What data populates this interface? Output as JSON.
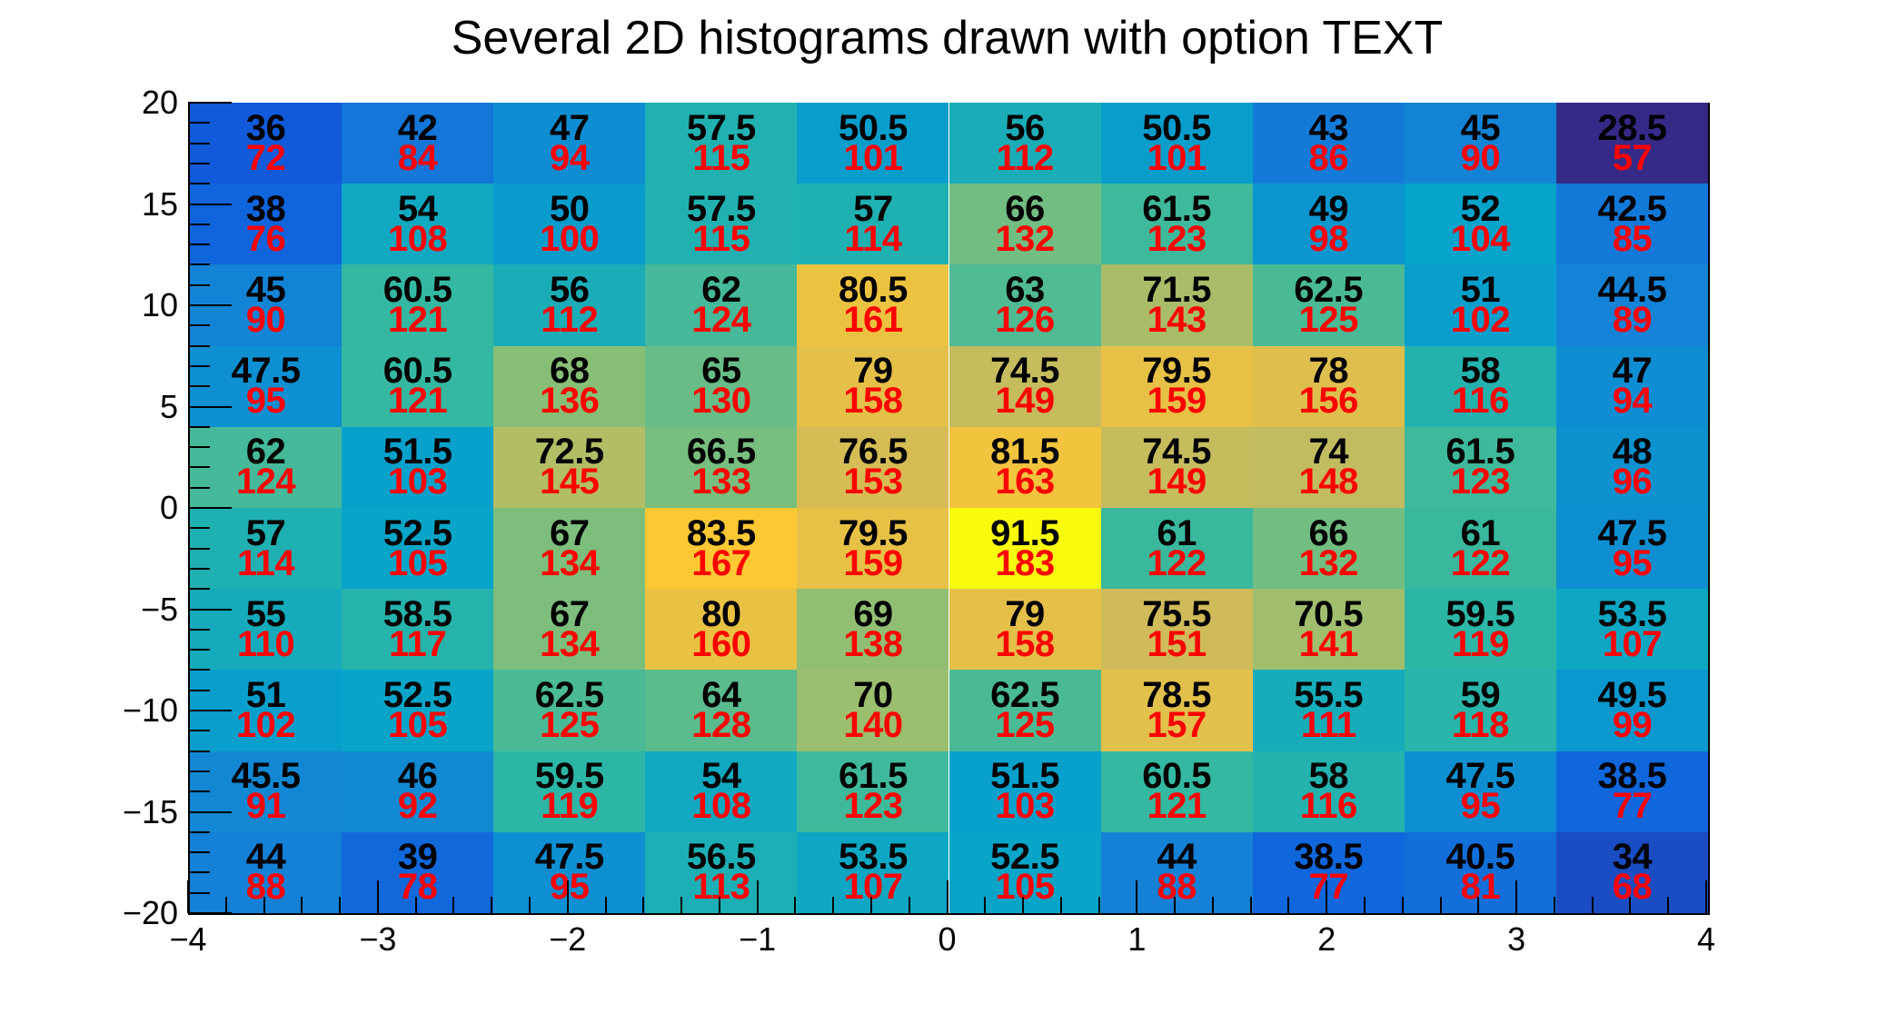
{
  "title": "Several 2D histograms drawn with option TEXT",
  "colors": {
    "background": "#ffffff",
    "axis": "#000000",
    "text_black_series": "#000000",
    "text_red_series": "#ff0000"
  },
  "palette": {
    "name": "root-kBird",
    "positions": [
      0,
      0.125,
      0.25,
      0.375,
      0.5,
      0.625,
      0.75,
      0.875,
      1.0
    ],
    "rgb": [
      [
        53,
        42,
        135
      ],
      [
        15,
        92,
        221
      ],
      [
        20,
        129,
        214
      ],
      [
        6,
        164,
        202
      ],
      [
        46,
        183,
        164
      ],
      [
        135,
        191,
        119
      ],
      [
        209,
        187,
        89
      ],
      [
        254,
        200,
        50
      ],
      [
        249,
        251,
        14
      ]
    ]
  },
  "chart_data": {
    "type": "heatmap",
    "title": "Several 2D histograms drawn with option TEXT",
    "xlabel": "",
    "ylabel": "",
    "x_range": [
      -4,
      4
    ],
    "y_range": [
      -20,
      20
    ],
    "x_bins": 10,
    "y_bins": 10,
    "x_major_step": 1,
    "x_minor_step": 0.2,
    "y_major_step": 5,
    "y_minor_step": 1,
    "x_tick_labels": [
      "−4",
      "−3",
      "−2",
      "−1",
      "0",
      "1",
      "2",
      "3",
      "4"
    ],
    "y_tick_labels": [
      "20",
      "15",
      "10",
      "5",
      "0",
      "−5",
      "−10",
      "−15",
      "−20"
    ],
    "grid": false,
    "legend": "none",
    "z_min": 57,
    "z_max": 183,
    "color_by": "red_series",
    "rows_order": "top_to_bottom",
    "series": [
      {
        "name": "black_series",
        "text_color": "#000000",
        "values": [
          [
            36,
            42,
            47,
            57.5,
            50.5,
            56,
            50.5,
            43,
            45,
            28.5
          ],
          [
            38,
            54,
            50,
            57.5,
            57,
            66,
            61.5,
            49,
            52,
            42.5
          ],
          [
            45,
            60.5,
            56,
            62,
            80.5,
            63,
            71.5,
            62.5,
            51,
            44.5
          ],
          [
            47.5,
            60.5,
            68,
            65,
            79,
            74.5,
            79.5,
            78,
            58,
            47
          ],
          [
            62,
            51.5,
            72.5,
            66.5,
            76.5,
            81.5,
            74.5,
            74,
            61.5,
            48
          ],
          [
            57,
            52.5,
            67,
            83.5,
            79.5,
            91.5,
            61,
            66,
            61,
            47.5
          ],
          [
            55,
            58.5,
            67,
            80,
            69,
            79,
            75.5,
            70.5,
            59.5,
            53.5
          ],
          [
            51,
            52.5,
            62.5,
            64,
            70,
            62.5,
            78.5,
            55.5,
            59,
            49.5
          ],
          [
            45.5,
            46,
            59.5,
            54,
            61.5,
            51.5,
            60.5,
            58,
            47.5,
            38.5
          ],
          [
            44,
            39,
            47.5,
            56.5,
            53.5,
            52.5,
            44,
            38.5,
            40.5,
            34
          ]
        ]
      },
      {
        "name": "red_series",
        "text_color": "#ff0000",
        "values": [
          [
            72,
            84,
            94,
            115,
            101,
            112,
            101,
            86,
            90,
            57
          ],
          [
            76,
            108,
            100,
            115,
            114,
            132,
            123,
            98,
            104,
            85
          ],
          [
            90,
            121,
            112,
            124,
            161,
            126,
            143,
            125,
            102,
            89
          ],
          [
            95,
            121,
            136,
            130,
            158,
            149,
            159,
            156,
            116,
            94
          ],
          [
            124,
            103,
            145,
            133,
            153,
            163,
            149,
            148,
            123,
            96
          ],
          [
            114,
            105,
            134,
            167,
            159,
            183,
            122,
            132,
            122,
            95
          ],
          [
            110,
            117,
            134,
            160,
            138,
            158,
            151,
            141,
            119,
            107
          ],
          [
            102,
            105,
            125,
            128,
            140,
            125,
            157,
            111,
            118,
            99
          ],
          [
            91,
            92,
            119,
            108,
            123,
            103,
            121,
            116,
            95,
            77
          ],
          [
            88,
            78,
            95,
            113,
            107,
            105,
            88,
            77,
            81,
            68
          ]
        ]
      }
    ]
  }
}
